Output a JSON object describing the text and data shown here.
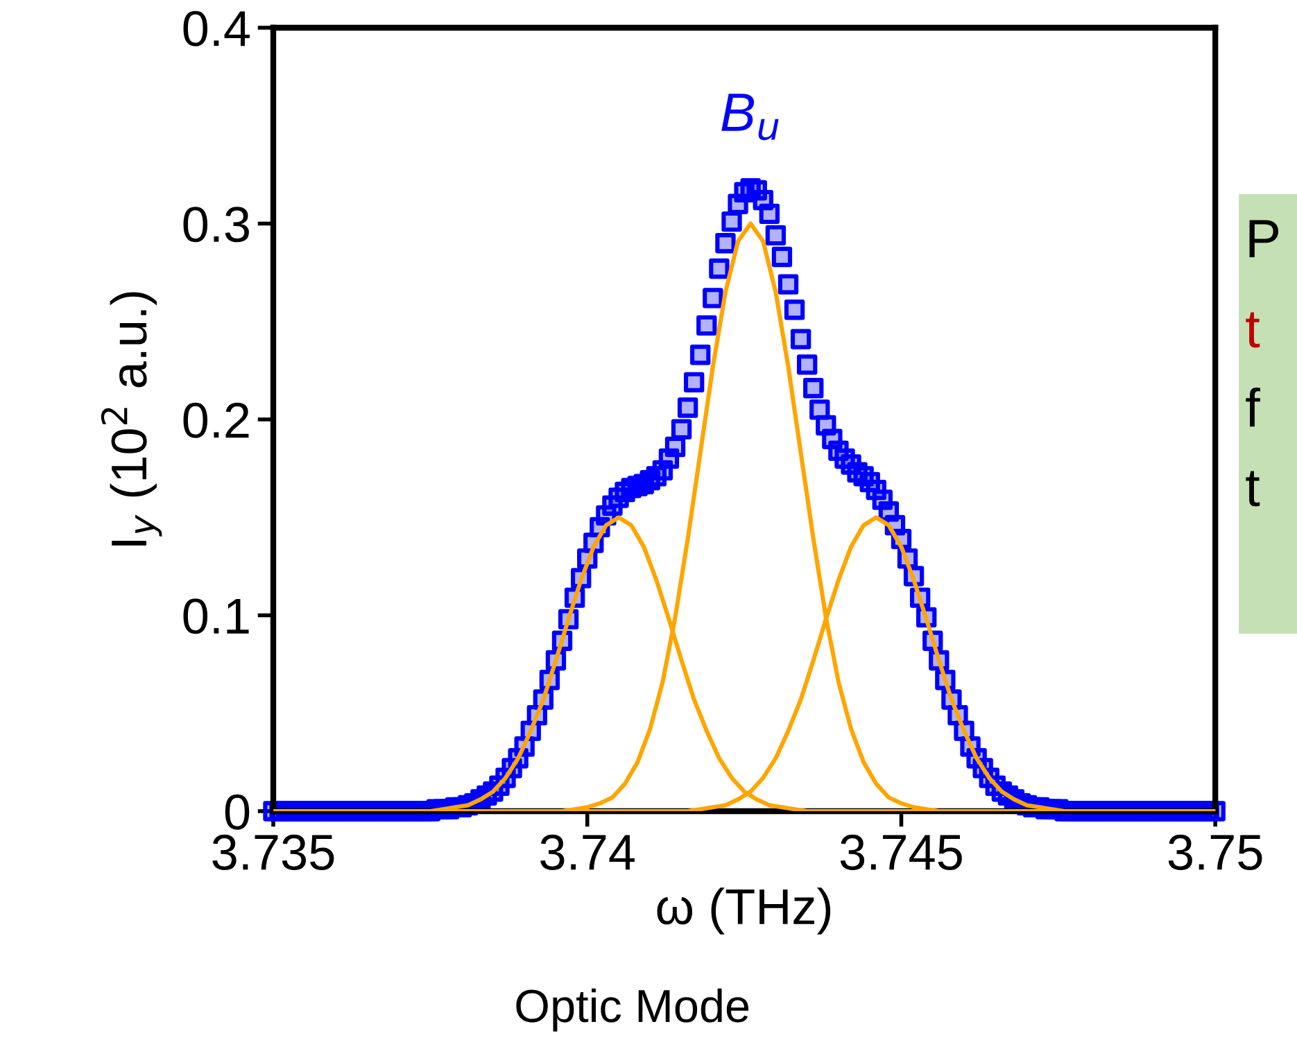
{
  "chart_data": {
    "type": "line",
    "xlabel": "ω (THz)",
    "ylabel": "I$_{y}$ (10$^{2}$ a.u.)",
    "xlim": [
      3.735,
      3.75
    ],
    "ylim": [
      0,
      0.4
    ],
    "xticks": [
      3.735,
      3.74,
      3.745,
      3.75
    ],
    "yticks": [
      0,
      0.1,
      0.2,
      0.3,
      0.4
    ],
    "grid": false,
    "legend": false,
    "annotations": [
      "B$_{u}$",
      "Optic Mode",
      "P",
      "t",
      "f",
      "t"
    ],
    "series": [
      {
        "type": "scatter",
        "marker": "square",
        "color": "#0000ff",
        "x": [
          3.735,
          3.7351,
          3.7352,
          3.7353,
          3.7354,
          3.7355,
          3.7356,
          3.7357,
          3.7358,
          3.7359,
          3.736,
          3.7361,
          3.7362,
          3.7363,
          3.7364,
          3.7365,
          3.7366,
          3.7367,
          3.7368,
          3.7369,
          3.737,
          3.7371,
          3.7372,
          3.7373,
          3.7374,
          3.7375,
          3.7376,
          3.7377,
          3.7378,
          3.7379,
          3.738,
          3.7381,
          3.7382,
          3.7383,
          3.7384,
          3.7385,
          3.7386,
          3.7387,
          3.7388,
          3.7389,
          3.739,
          3.7391,
          3.7392,
          3.7393,
          3.7394,
          3.7395,
          3.7396,
          3.7397,
          3.7398,
          3.7399,
          3.74,
          3.7401,
          3.7402,
          3.7403,
          3.7404,
          3.7405,
          3.7406,
          3.7407,
          3.7408,
          3.7409,
          3.741,
          3.7411,
          3.7412,
          3.7413,
          3.7414,
          3.7415,
          3.7416,
          3.7417,
          3.7418,
          3.7419,
          3.742,
          3.7421,
          3.7422,
          3.7423,
          3.7424,
          3.7425,
          3.7426,
          3.7427,
          3.7428,
          3.7429,
          3.743,
          3.7431,
          3.7432,
          3.7433,
          3.7434,
          3.7435,
          3.7436,
          3.7437,
          3.7438,
          3.7439,
          3.744,
          3.7441,
          3.7442,
          3.7443,
          3.7444,
          3.7445,
          3.7446,
          3.7447,
          3.7448,
          3.7449,
          3.745,
          3.7451,
          3.7452,
          3.7453,
          3.7454,
          3.7455,
          3.7456,
          3.7457,
          3.7458,
          3.7459,
          3.746,
          3.7461,
          3.7462,
          3.7463,
          3.7464,
          3.7465,
          3.7466,
          3.7467,
          3.7468,
          3.7469,
          3.747,
          3.7471,
          3.7472,
          3.7473,
          3.7474,
          3.7475,
          3.7476,
          3.7477,
          3.7478,
          3.7479,
          3.748,
          3.7481,
          3.7482,
          3.7483,
          3.7484,
          3.7485,
          3.7486,
          3.7487,
          3.7488,
          3.7489,
          3.749,
          3.7491,
          3.7492,
          3.7493,
          3.7494,
          3.7495,
          3.7496,
          3.7497,
          3.7498,
          3.7499,
          3.75
        ],
        "values": [
          0,
          0,
          0,
          0,
          0,
          0,
          0,
          0,
          0,
          0,
          0,
          0,
          0,
          0,
          0,
          0,
          0,
          0,
          0,
          0,
          0,
          0,
          0,
          0,
          0,
          0,
          0.001,
          0.001,
          0.001,
          0.002,
          0.002,
          0.003,
          0.004,
          0.006,
          0.008,
          0.01,
          0.013,
          0.017,
          0.022,
          0.027,
          0.033,
          0.041,
          0.049,
          0.057,
          0.067,
          0.077,
          0.087,
          0.098,
          0.109,
          0.119,
          0.129,
          0.137,
          0.145,
          0.151,
          0.156,
          0.16,
          0.163,
          0.165,
          0.166,
          0.167,
          0.169,
          0.171,
          0.174,
          0.18,
          0.186,
          0.195,
          0.206,
          0.219,
          0.233,
          0.248,
          0.262,
          0.277,
          0.29,
          0.301,
          0.31,
          0.316,
          0.318,
          0.317,
          0.312,
          0.305,
          0.294,
          0.283,
          0.269,
          0.256,
          0.241,
          0.228,
          0.216,
          0.205,
          0.197,
          0.19,
          0.184,
          0.18,
          0.177,
          0.173,
          0.171,
          0.168,
          0.164,
          0.159,
          0.153,
          0.146,
          0.139,
          0.129,
          0.12,
          0.109,
          0.099,
          0.087,
          0.077,
          0.067,
          0.057,
          0.049,
          0.041,
          0.033,
          0.027,
          0.022,
          0.017,
          0.013,
          0.01,
          0.008,
          0.006,
          0.004,
          0.003,
          0.002,
          0.002,
          0.001,
          0.001,
          0.001,
          0,
          0,
          0,
          0,
          0,
          0,
          0,
          0,
          0,
          0,
          0,
          0,
          0,
          0,
          0,
          0,
          0,
          0,
          0,
          0,
          0,
          0,
          0,
          0,
          0
        ]
      },
      {
        "color": "#ffa500",
        "x": [
          3.735,
          3.7375,
          3.7377,
          3.7379,
          3.7381,
          3.7383,
          3.7385,
          3.7387,
          3.7389,
          3.7391,
          3.7393,
          3.7395,
          3.7397,
          3.7399,
          3.7401,
          3.7403,
          3.7405,
          3.7407,
          3.7409,
          3.7411,
          3.7413,
          3.7415,
          3.7417,
          3.7419,
          3.7421,
          3.7423,
          3.7425,
          3.7427,
          3.7429,
          3.7431,
          3.7433,
          3.7435,
          3.75
        ],
        "values": [
          0,
          0,
          0.001,
          0.002,
          0.003,
          0.006,
          0.01,
          0.017,
          0.027,
          0.041,
          0.057,
          0.077,
          0.098,
          0.118,
          0.135,
          0.146,
          0.15,
          0.146,
          0.135,
          0.118,
          0.098,
          0.077,
          0.057,
          0.041,
          0.027,
          0.017,
          0.01,
          0.006,
          0.003,
          0.002,
          0.001,
          0,
          0
        ]
      },
      {
        "color": "#ffa500",
        "x": [
          3.735,
          3.7396,
          3.7398,
          3.74,
          3.7402,
          3.7404,
          3.7406,
          3.7408,
          3.741,
          3.7412,
          3.7414,
          3.7416,
          3.7418,
          3.742,
          3.7422,
          3.7424,
          3.7426,
          3.7428,
          3.743,
          3.7432,
          3.7434,
          3.7436,
          3.7438,
          3.744,
          3.7442,
          3.7444,
          3.7446,
          3.7448,
          3.745,
          3.7452,
          3.7454,
          3.7456,
          3.75
        ],
        "values": [
          0,
          0,
          0.001,
          0.002,
          0.004,
          0.007,
          0.014,
          0.025,
          0.042,
          0.066,
          0.099,
          0.139,
          0.183,
          0.227,
          0.265,
          0.291,
          0.3,
          0.291,
          0.265,
          0.227,
          0.183,
          0.139,
          0.099,
          0.066,
          0.042,
          0.025,
          0.014,
          0.007,
          0.004,
          0.002,
          0.001,
          0,
          0
        ]
      },
      {
        "color": "#ffa500",
        "x": [
          3.735,
          3.7416,
          3.7418,
          3.742,
          3.7422,
          3.7424,
          3.7426,
          3.7428,
          3.743,
          3.7432,
          3.7434,
          3.7436,
          3.7438,
          3.744,
          3.7442,
          3.7444,
          3.7446,
          3.7448,
          3.745,
          3.7452,
          3.7454,
          3.7456,
          3.7458,
          3.746,
          3.7462,
          3.7464,
          3.7466,
          3.7468,
          3.747,
          3.7472,
          3.7474,
          3.7476,
          3.75
        ],
        "values": [
          0,
          0,
          0.001,
          0.002,
          0.003,
          0.006,
          0.01,
          0.017,
          0.027,
          0.041,
          0.057,
          0.077,
          0.098,
          0.118,
          0.135,
          0.146,
          0.15,
          0.146,
          0.135,
          0.118,
          0.098,
          0.077,
          0.057,
          0.041,
          0.027,
          0.017,
          0.01,
          0.006,
          0.003,
          0.002,
          0.001,
          0,
          0
        ]
      }
    ]
  }
}
